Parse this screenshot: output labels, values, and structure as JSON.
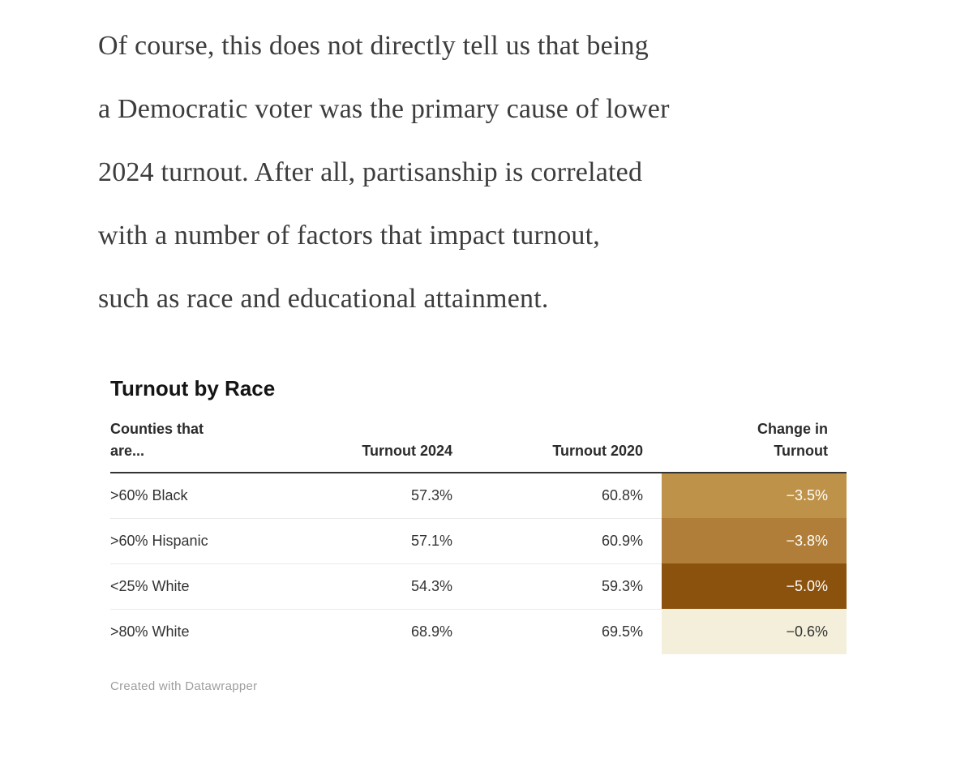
{
  "article": {
    "lines": [
      "Of course, this does not directly tell us that being",
      "a Democratic voter was the primary cause of lower",
      "2024 turnout. After all, partisanship is correlated",
      "with a number of factors that impact turnout,",
      "such as race and educational attainment."
    ]
  },
  "chart": {
    "title": "Turnout by Race",
    "attribution": "Created with Datawrapper",
    "columns": {
      "counties": "Counties that\nare...",
      "turnout_2024": "Turnout 2024",
      "turnout_2020": "Turnout 2020",
      "change": "Change in\nTurnout"
    },
    "rows": [
      {
        "label": ">60% Black",
        "turnout_2024": "57.3%",
        "turnout_2020": "60.8%",
        "change": "−3.5%",
        "change_bg": "#be9249",
        "change_text": "#ffffff"
      },
      {
        "label": ">60% Hispanic",
        "turnout_2024": "57.1%",
        "turnout_2020": "60.9%",
        "change": "−3.8%",
        "change_bg": "#b07e38",
        "change_text": "#ffffff"
      },
      {
        "label": "<25% White",
        "turnout_2024": "54.3%",
        "turnout_2020": "59.3%",
        "change": "−5.0%",
        "change_bg": "#8b520d",
        "change_text": "#ffffff"
      },
      {
        "label": ">80% White",
        "turnout_2024": "68.9%",
        "turnout_2020": "69.5%",
        "change": "−0.6%",
        "change_bg": "#f4efdb",
        "change_text": "#333333"
      }
    ]
  },
  "chart_data": {
    "type": "table",
    "title": "Turnout by Race",
    "columns": [
      "Counties that are...",
      "Turnout 2024",
      "Turnout 2020",
      "Change in Turnout"
    ],
    "rows": [
      {
        "category": ">60% Black",
        "turnout_2024": 57.3,
        "turnout_2020": 60.8,
        "change": -3.5
      },
      {
        "category": ">60% Hispanic",
        "turnout_2024": 57.1,
        "turnout_2020": 60.9,
        "change": -3.8
      },
      {
        "category": "<25% White",
        "turnout_2024": 54.3,
        "turnout_2020": 59.3,
        "change": -5.0
      },
      {
        "category": ">80% White",
        "turnout_2024": 68.9,
        "turnout_2020": 69.5,
        "change": -0.6
      }
    ],
    "heatmap_column": "Change in Turnout",
    "heatmap_colors": [
      "#be9249",
      "#b07e38",
      "#8b520d",
      "#f4efdb"
    ],
    "header_border_color": "#333333",
    "row_separator_color": "#e9e9e9",
    "attribution": "Created with Datawrapper"
  }
}
